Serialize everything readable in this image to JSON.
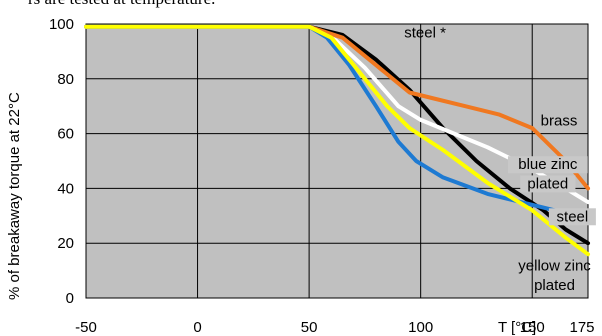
{
  "header_text": "rs are tested at temperature.",
  "chart_data": {
    "type": "line",
    "ylabel": "% of breakaway  torque at 22°C",
    "xlabel": "T [°C]",
    "xlim": [
      -50,
      175
    ],
    "ylim": [
      0,
      100
    ],
    "x_ticks": [
      "-50",
      "0",
      "50",
      "100",
      "150",
      "175"
    ],
    "y_ticks": [
      "0",
      "20",
      "40",
      "60",
      "80",
      "100"
    ],
    "plot_background": "#c0c0c0",
    "grid": true,
    "series": [
      {
        "name": "steel *",
        "color": "#000000",
        "points": [
          [
            -50,
            99
          ],
          [
            50,
            99
          ],
          [
            65,
            96
          ],
          [
            80,
            87
          ],
          [
            95,
            76
          ],
          [
            110,
            62
          ],
          [
            125,
            50
          ],
          [
            140,
            40
          ],
          [
            155,
            32
          ],
          [
            165,
            25
          ],
          [
            175,
            20
          ]
        ]
      },
      {
        "name": "brass",
        "color": "#f07820",
        "points": [
          [
            -50,
            99
          ],
          [
            50,
            99
          ],
          [
            65,
            95
          ],
          [
            80,
            85
          ],
          [
            95,
            75
          ],
          [
            105,
            73
          ],
          [
            120,
            70
          ],
          [
            135,
            67
          ],
          [
            150,
            62
          ],
          [
            165,
            50
          ],
          [
            175,
            40
          ]
        ]
      },
      {
        "name": "blue zinc plated",
        "color": "#ffffff",
        "points": [
          [
            -50,
            99
          ],
          [
            50,
            99
          ],
          [
            62,
            94
          ],
          [
            75,
            84
          ],
          [
            90,
            70
          ],
          [
            100,
            65
          ],
          [
            115,
            60
          ],
          [
            130,
            55
          ],
          [
            150,
            47
          ],
          [
            165,
            40
          ],
          [
            175,
            35
          ]
        ]
      },
      {
        "name": "steel",
        "color": "#1e7ad2",
        "points": [
          [
            -50,
            99
          ],
          [
            50,
            99
          ],
          [
            58,
            95
          ],
          [
            68,
            85
          ],
          [
            80,
            70
          ],
          [
            90,
            57
          ],
          [
            98,
            50
          ],
          [
            110,
            44
          ],
          [
            130,
            38
          ],
          [
            150,
            34
          ],
          [
            165,
            31
          ],
          [
            175,
            30
          ]
        ]
      },
      {
        "name": "yellow zinc plated",
        "color": "#ffff00",
        "points": [
          [
            -50,
            99
          ],
          [
            50,
            99
          ],
          [
            60,
            95
          ],
          [
            72,
            83
          ],
          [
            85,
            70
          ],
          [
            95,
            62
          ],
          [
            110,
            54
          ],
          [
            130,
            42
          ],
          [
            150,
            32
          ],
          [
            165,
            22
          ],
          [
            175,
            16
          ]
        ]
      }
    ],
    "annotations": [
      {
        "text": "steel *",
        "series": "steel *"
      },
      {
        "text": "brass",
        "series": "brass"
      },
      {
        "text": "blue zinc",
        "series": "blue zinc plated"
      },
      {
        "text": "plated",
        "series": "blue zinc plated"
      },
      {
        "text": "steel",
        "series": "steel"
      },
      {
        "text": "yellow zinc",
        "series": "yellow zinc plated"
      },
      {
        "text": "plated",
        "series": "yellow zinc plated"
      }
    ]
  }
}
